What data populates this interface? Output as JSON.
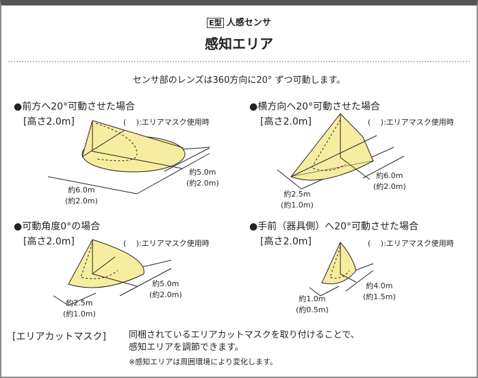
{
  "header": {
    "badge": "E型",
    "subtitle": "人感センサ",
    "title": "感知エリア"
  },
  "intro": "センサ部のレンズは360方向に20° ずつ可動します。",
  "mask_note": "(　 ):エリアマスク使用時",
  "colors": {
    "area_fill": "#f7eda0",
    "line": "#222222",
    "frame": "#555555"
  },
  "panels": [
    {
      "title": "●前方へ20°可動させた場合",
      "height": "[高さ2.0m]",
      "dim_a": "約5.0m",
      "dim_a_mask": "(約2.0m)",
      "dim_b": "約6.0m",
      "dim_b_mask": "(約2.0m)"
    },
    {
      "title": "●横方向へ20°可動させた場合",
      "height": "[高さ2.0m]",
      "dim_a": "約6.0m",
      "dim_a_mask": "(約2.0m)",
      "dim_b": "約2.5m",
      "dim_b_mask": "(約1.0m)"
    },
    {
      "title": "●可動角度0°の場合",
      "height": "[高さ2.0m]",
      "dim_a": "約5.0m",
      "dim_a_mask": "(約2.0m)",
      "dim_b": "約2.5m",
      "dim_b_mask": "(約1.0m)"
    },
    {
      "title": "●手前（器具側）へ20°可動させた場合",
      "height": "[高さ2.0m]",
      "dim_a": "約4.0m",
      "dim_a_mask": "(約1.5m)",
      "dim_b": "約1.0m",
      "dim_b_mask": "(約0.5m)"
    }
  ],
  "footer": {
    "label": "[エリアカットマスク]",
    "line1": "同梱されているエリアカットマスクを取り付けることで、",
    "line2": "感知エリアを調節できます。",
    "note": "※感知エリアは周囲環境により変化します。"
  }
}
